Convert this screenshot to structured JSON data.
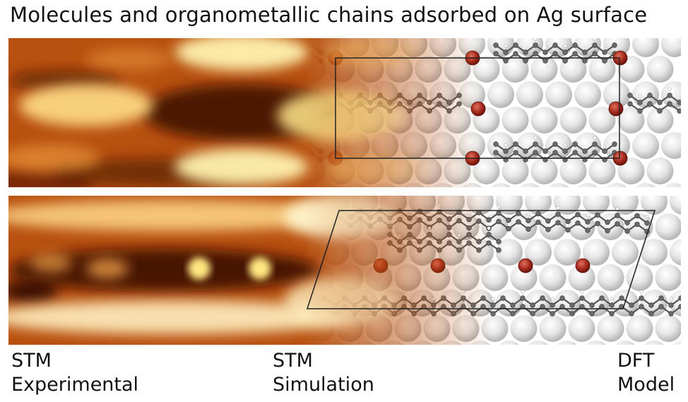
{
  "title": "Molecules and organometallic chains adsorbed on Ag surface",
  "captions": {
    "experimental": {
      "line1": "STM",
      "line2": "Experimental"
    },
    "simulation": {
      "line1": "STM",
      "line2": "Simulation"
    },
    "dft": {
      "line1": "DFT",
      "line2": "Model"
    }
  },
  "colors": {
    "stm_dark": "#3a0c04",
    "stm_mid": "#b8500f",
    "stm_bright": "#fff2b0",
    "silver_atom": "#e8e8e8",
    "metal_adatom": "#a52a1e",
    "carbon_backbone": "#555555",
    "unit_cell_line": "#222222"
  }
}
